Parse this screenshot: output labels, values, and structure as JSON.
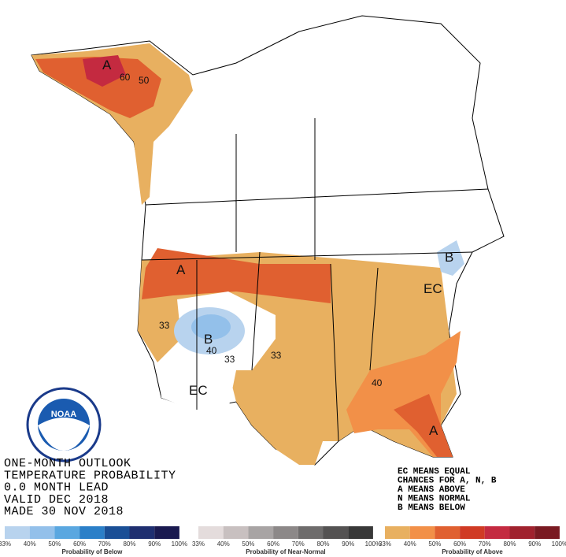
{
  "map": {
    "labels": [
      "A",
      "60",
      "50",
      "A",
      "33",
      "B",
      "40",
      "33",
      "33",
      "EC",
      "B",
      "EC",
      "40",
      "A"
    ],
    "title_lines": [
      "ONE-MONTH OUTLOOK",
      "TEMPERATURE PROBABILITY",
      "0.0 MONTH LEAD",
      "VALID DEC 2018",
      "MADE 30 NOV 2018"
    ],
    "key_lines": [
      "EC MEANS EQUAL",
      "CHANCES FOR A, N, B",
      "A MEANS ABOVE",
      "N MEANS NORMAL",
      "B MEANS BELOW"
    ],
    "logo_text": "NOAA",
    "legend": [
      {
        "title": "Probability of Below",
        "colors": [
          "#b8d3ee",
          "#93c0ea",
          "#5aa7e0",
          "#2b7fc8",
          "#1a4f96",
          "#1f2f70",
          "#1a1a50"
        ],
        "labels": [
          "33%",
          "40%",
          "50%",
          "60%",
          "70%",
          "80%",
          "90%",
          "100%"
        ]
      },
      {
        "title": "Probability of Near-Normal",
        "colors": [
          "#e4dcdc",
          "#c8c0c0",
          "#a8a4a4",
          "#8c8888",
          "#6e6c6c",
          "#545252",
          "#383838"
        ],
        "labels": [
          "33%",
          "40%",
          "50%",
          "60%",
          "70%",
          "80%",
          "90%",
          "100%"
        ]
      },
      {
        "title": "Probability of Above",
        "colors": [
          "#e8b060",
          "#f29048",
          "#e06030",
          "#d03a24",
          "#c42a40",
          "#a0222e",
          "#7a1a22"
        ],
        "labels": [
          "33%",
          "40%",
          "50%",
          "60%",
          "70%",
          "80%",
          "90%",
          "100%"
        ]
      }
    ]
  }
}
